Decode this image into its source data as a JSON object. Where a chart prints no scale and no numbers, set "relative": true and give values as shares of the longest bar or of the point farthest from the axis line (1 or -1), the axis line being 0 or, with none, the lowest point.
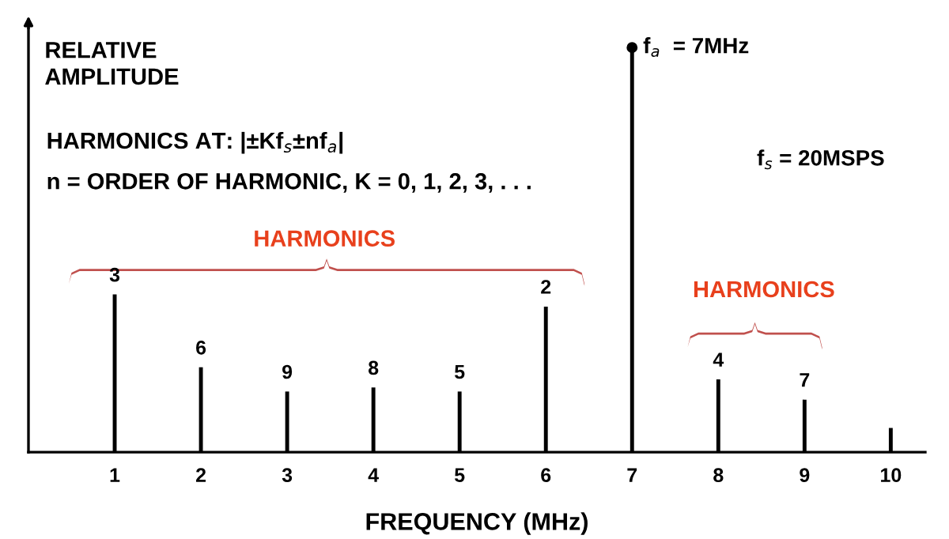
{
  "chart_data": {
    "type": "bar",
    "relative": true,
    "xlabel": "FREQUENCY (MHz)",
    "ylabel": "RELATIVE\nAMPLITUDE",
    "x": [
      1,
      2,
      3,
      4,
      5,
      6,
      7,
      8,
      9,
      10
    ],
    "values": [
      0.39,
      0.21,
      0.15,
      0.16,
      0.15,
      0.36,
      1.0,
      0.18,
      0.13,
      0.06
    ],
    "color": "#000000",
    "xlim": [
      0,
      10.4
    ],
    "xticks": [
      1,
      2,
      3,
      4,
      5,
      6,
      7,
      8,
      9,
      10
    ],
    "annotations": [
      {
        "text": "f$_{a}$  = 7MHz",
        "x": 7,
        "y": 1.0
      },
      {
        "text": "3",
        "x": 1,
        "y": 0.39
      },
      {
        "text": "6",
        "x": 2,
        "y": 0.21
      },
      {
        "text": "9",
        "x": 3,
        "y": 0.15
      },
      {
        "text": "8",
        "x": 4,
        "y": 0.16
      },
      {
        "text": "5",
        "x": 5,
        "y": 0.15
      },
      {
        "text": "2",
        "x": 6,
        "y": 0.36
      },
      {
        "text": "4",
        "x": 8,
        "y": 0.18
      },
      {
        "text": "7",
        "x": 9,
        "y": 0.13
      },
      "HARMONICS AT: |±Kf$_{s}$±nf$_{a}$|",
      "n = ORDER OF HARMONIC, K = 0, 1, 2, 3, . . .",
      "f$_{s}$ = 20MSPS",
      "HARMONICS",
      "HARMONICS"
    ],
    "grid": false,
    "legend": false
  }
}
